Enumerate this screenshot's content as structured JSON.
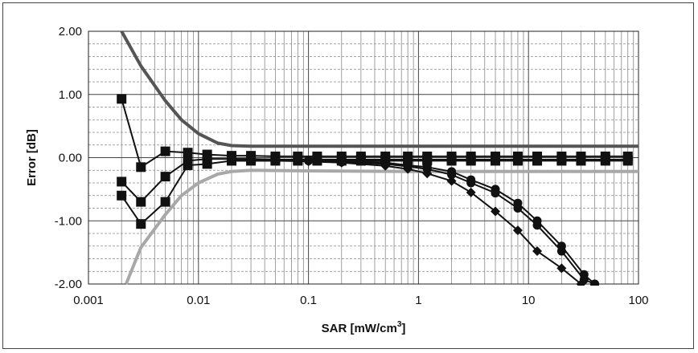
{
  "chart_data": {
    "type": "line",
    "title": "",
    "xlabel": "SAR [mW/cm",
    "xlabel_sup": "3",
    "xlabel_end": "]",
    "ylabel": "Error [dB]",
    "xscale": "log",
    "xlim": [
      0.001,
      100
    ],
    "ylim": [
      -2.0,
      2.0
    ],
    "grid": true,
    "legend": "none",
    "xticks": [
      {
        "value": 0.001,
        "label": "0.001"
      },
      {
        "value": 0.01,
        "label": "0.01"
      },
      {
        "value": 0.1,
        "label": "0.1"
      },
      {
        "value": 1,
        "label": "1"
      },
      {
        "value": 10,
        "label": "10"
      },
      {
        "value": 100,
        "label": "100"
      }
    ],
    "yticks": [
      {
        "value": 2.0,
        "label": "2.00"
      },
      {
        "value": 1.0,
        "label": "1.00"
      },
      {
        "value": 0.0,
        "label": "0.00"
      },
      {
        "value": -1.0,
        "label": "-1.00"
      },
      {
        "value": -2.0,
        "label": "-2.00"
      }
    ],
    "series": [
      {
        "color": "#555555",
        "width": 4,
        "marker": "none",
        "x": [
          0.002,
          0.003,
          0.005,
          0.007,
          0.01,
          0.015,
          0.02,
          0.03,
          0.1,
          1,
          10,
          100
        ],
        "y": [
          2.0,
          1.45,
          0.9,
          0.6,
          0.38,
          0.23,
          0.19,
          0.18,
          0.18,
          0.18,
          0.18,
          0.18
        ]
      },
      {
        "color": "#a8a8a8",
        "width": 4,
        "marker": "none",
        "x": [
          0.0022,
          0.003,
          0.005,
          0.007,
          0.01,
          0.015,
          0.02,
          0.03,
          0.1,
          1,
          10,
          100
        ],
        "y": [
          -2.0,
          -1.42,
          -0.9,
          -0.6,
          -0.4,
          -0.26,
          -0.22,
          -0.2,
          -0.21,
          -0.22,
          -0.22,
          -0.22
        ]
      },
      {
        "color": "#111111",
        "width": 2,
        "marker": "square",
        "x": [
          0.002,
          0.003,
          0.005,
          0.008,
          0.012,
          0.02,
          0.03,
          0.05,
          0.08,
          0.12,
          0.2,
          0.3,
          0.5,
          0.8,
          1.2,
          2,
          3,
          5,
          8,
          12,
          20,
          30,
          50,
          80
        ],
        "y": [
          0.93,
          -0.15,
          0.1,
          0.08,
          0.05,
          0.03,
          0.03,
          0.02,
          0.02,
          0.02,
          0.02,
          0.02,
          0.02,
          0.02,
          0.02,
          0.02,
          0.02,
          0.02,
          0.02,
          0.02,
          0.02,
          0.02,
          0.02,
          0.02
        ]
      },
      {
        "color": "#111111",
        "width": 2,
        "marker": "square",
        "x": [
          0.002,
          0.003,
          0.005,
          0.008,
          0.012,
          0.02,
          0.03,
          0.05,
          0.08,
          0.12,
          0.2,
          0.3,
          0.5,
          0.8,
          1.2,
          2,
          3,
          5,
          8,
          12,
          20,
          30,
          50,
          80
        ],
        "y": [
          -0.38,
          -0.7,
          -0.3,
          -0.05,
          -0.02,
          -0.02,
          -0.02,
          -0.03,
          -0.03,
          -0.03,
          -0.03,
          -0.03,
          -0.03,
          -0.03,
          -0.03,
          -0.03,
          -0.03,
          -0.03,
          -0.03,
          -0.03,
          -0.03,
          -0.03,
          -0.03,
          -0.03
        ]
      },
      {
        "color": "#111111",
        "width": 2,
        "marker": "square",
        "x": [
          0.002,
          0.003,
          0.005,
          0.008,
          0.012,
          0.02,
          0.03,
          0.05,
          0.08,
          0.12,
          0.2,
          0.3,
          0.5,
          0.8,
          1.2,
          2,
          3,
          5,
          8,
          12,
          20,
          30,
          50,
          80
        ],
        "y": [
          -0.6,
          -1.05,
          -0.7,
          -0.12,
          -0.1,
          -0.05,
          -0.05,
          -0.05,
          -0.05,
          -0.05,
          -0.05,
          -0.05,
          -0.05,
          -0.05,
          -0.05,
          -0.05,
          -0.05,
          -0.05,
          -0.05,
          -0.05,
          -0.05,
          -0.05,
          -0.05,
          -0.05
        ]
      },
      {
        "color": "#111111",
        "width": 2,
        "marker": "circle",
        "x": [
          0.02,
          0.05,
          0.1,
          0.2,
          0.5,
          0.8,
          1.2,
          2,
          3,
          5,
          8,
          12,
          20,
          32,
          40
        ],
        "y": [
          -0.02,
          -0.03,
          -0.04,
          -0.05,
          -0.08,
          -0.12,
          -0.15,
          -0.22,
          -0.35,
          -0.5,
          -0.72,
          -1.0,
          -1.4,
          -1.85,
          -2.0
        ]
      },
      {
        "color": "#111111",
        "width": 2,
        "marker": "circle",
        "x": [
          0.02,
          0.05,
          0.1,
          0.2,
          0.5,
          0.8,
          1.2,
          2,
          3,
          5,
          8,
          12,
          20,
          32,
          40
        ],
        "y": [
          -0.03,
          -0.04,
          -0.05,
          -0.07,
          -0.1,
          -0.14,
          -0.18,
          -0.27,
          -0.4,
          -0.56,
          -0.8,
          -1.07,
          -1.48,
          -1.93,
          -2.0
        ]
      },
      {
        "color": "#111111",
        "width": 2,
        "marker": "diamond",
        "x": [
          0.02,
          0.05,
          0.1,
          0.2,
          0.5,
          0.8,
          1.2,
          2,
          3,
          5,
          8,
          12,
          20,
          30
        ],
        "y": [
          -0.05,
          -0.05,
          -0.06,
          -0.08,
          -0.13,
          -0.18,
          -0.25,
          -0.37,
          -0.55,
          -0.85,
          -1.15,
          -1.48,
          -1.75,
          -2.0
        ]
      }
    ]
  }
}
